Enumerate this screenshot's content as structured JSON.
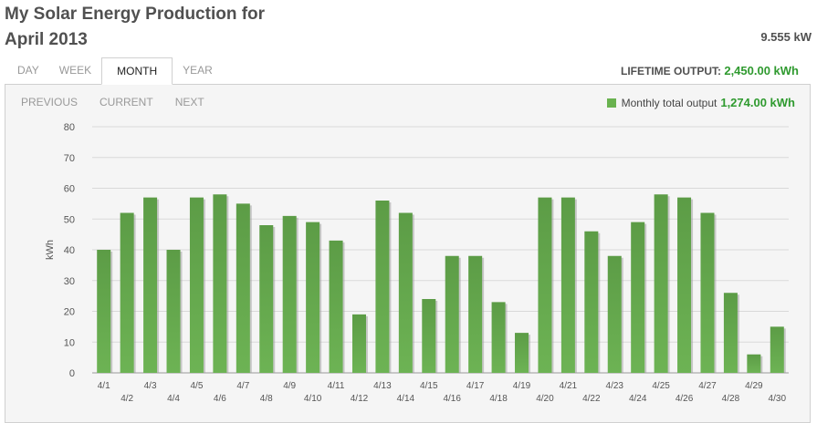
{
  "header": {
    "title_line1": "My Solar Energy Production for",
    "title_line2": "April 2013",
    "current_power": "9.555 kW"
  },
  "tabs": [
    {
      "label": "DAY",
      "active": false
    },
    {
      "label": "WEEK",
      "active": false
    },
    {
      "label": "MONTH",
      "active": true
    },
    {
      "label": "YEAR",
      "active": false
    }
  ],
  "lifetime": {
    "label": "LIFETIME OUTPUT:",
    "value": "2,450.00 kWh"
  },
  "nav": {
    "previous": "PREVIOUS",
    "current": "CURRENT",
    "next": "NEXT"
  },
  "legend": {
    "label": "Monthly total output",
    "total": "1,274.00 kWh"
  },
  "colors": {
    "bar": "#6db354",
    "bar_dark": "#4e9437",
    "accent_green": "#2f9a2f"
  },
  "chart_data": {
    "type": "bar",
    "ylabel": "kWh",
    "ylim": [
      0,
      80
    ],
    "yticks": [
      0,
      10,
      20,
      30,
      40,
      50,
      60,
      70,
      80
    ],
    "grid": true,
    "categories": [
      "4/1",
      "4/2",
      "4/3",
      "4/4",
      "4/5",
      "4/6",
      "4/7",
      "4/8",
      "4/9",
      "4/10",
      "4/11",
      "4/12",
      "4/13",
      "4/14",
      "4/15",
      "4/16",
      "4/17",
      "4/18",
      "4/19",
      "4/20",
      "4/21",
      "4/22",
      "4/23",
      "4/24",
      "4/25",
      "4/26",
      "4/27",
      "4/28",
      "4/29",
      "4/30"
    ],
    "values": [
      40,
      52,
      57,
      40,
      57,
      58,
      55,
      48,
      51,
      49,
      43,
      19,
      56,
      52,
      24,
      38,
      38,
      23,
      13,
      57,
      57,
      46,
      38,
      49,
      58,
      57,
      52,
      26,
      6,
      15
    ]
  }
}
